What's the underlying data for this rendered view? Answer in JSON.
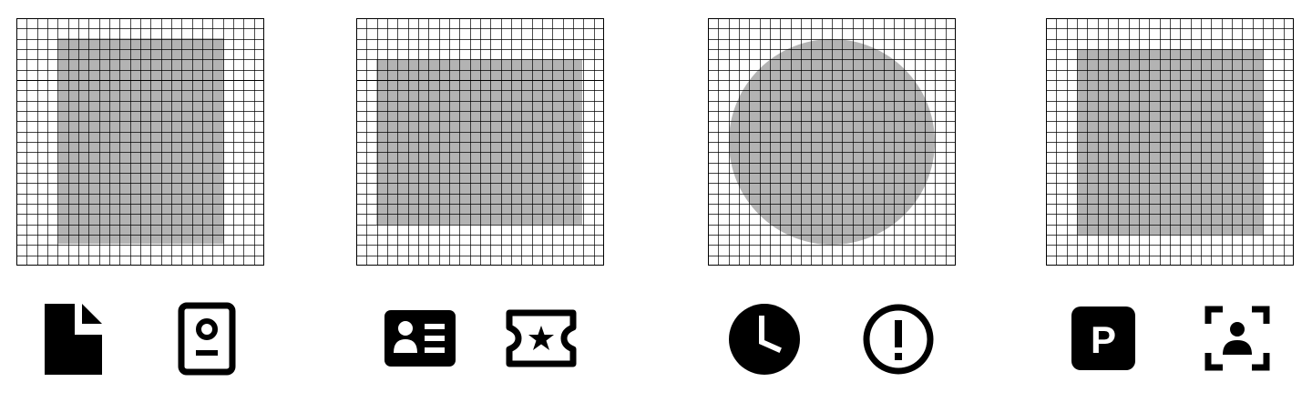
{
  "colors": {
    "background": "#ffffff",
    "grid_line": "#000000",
    "keyline_fill": "#b3b3b3",
    "icon": "#000000"
  },
  "grid": {
    "cells_per_side": 24
  },
  "panels": [
    {
      "keyline": "portrait-rectangle",
      "guide_line": true,
      "icons": [
        "document-icon",
        "portrait-id-card-icon"
      ]
    },
    {
      "keyline": "landscape-rectangle",
      "guide_line": true,
      "icons": [
        "contact-card-icon",
        "star-ticket-icon"
      ]
    },
    {
      "keyline": "circle",
      "guide_line": false,
      "icons": [
        "clock-icon",
        "alert-circle-icon"
      ]
    },
    {
      "keyline": "square",
      "guide_line": false,
      "icons": [
        "parking-icon",
        "person-focus-icon"
      ]
    }
  ],
  "labels": {
    "parking_letter": "P",
    "alert_mark": "!"
  }
}
